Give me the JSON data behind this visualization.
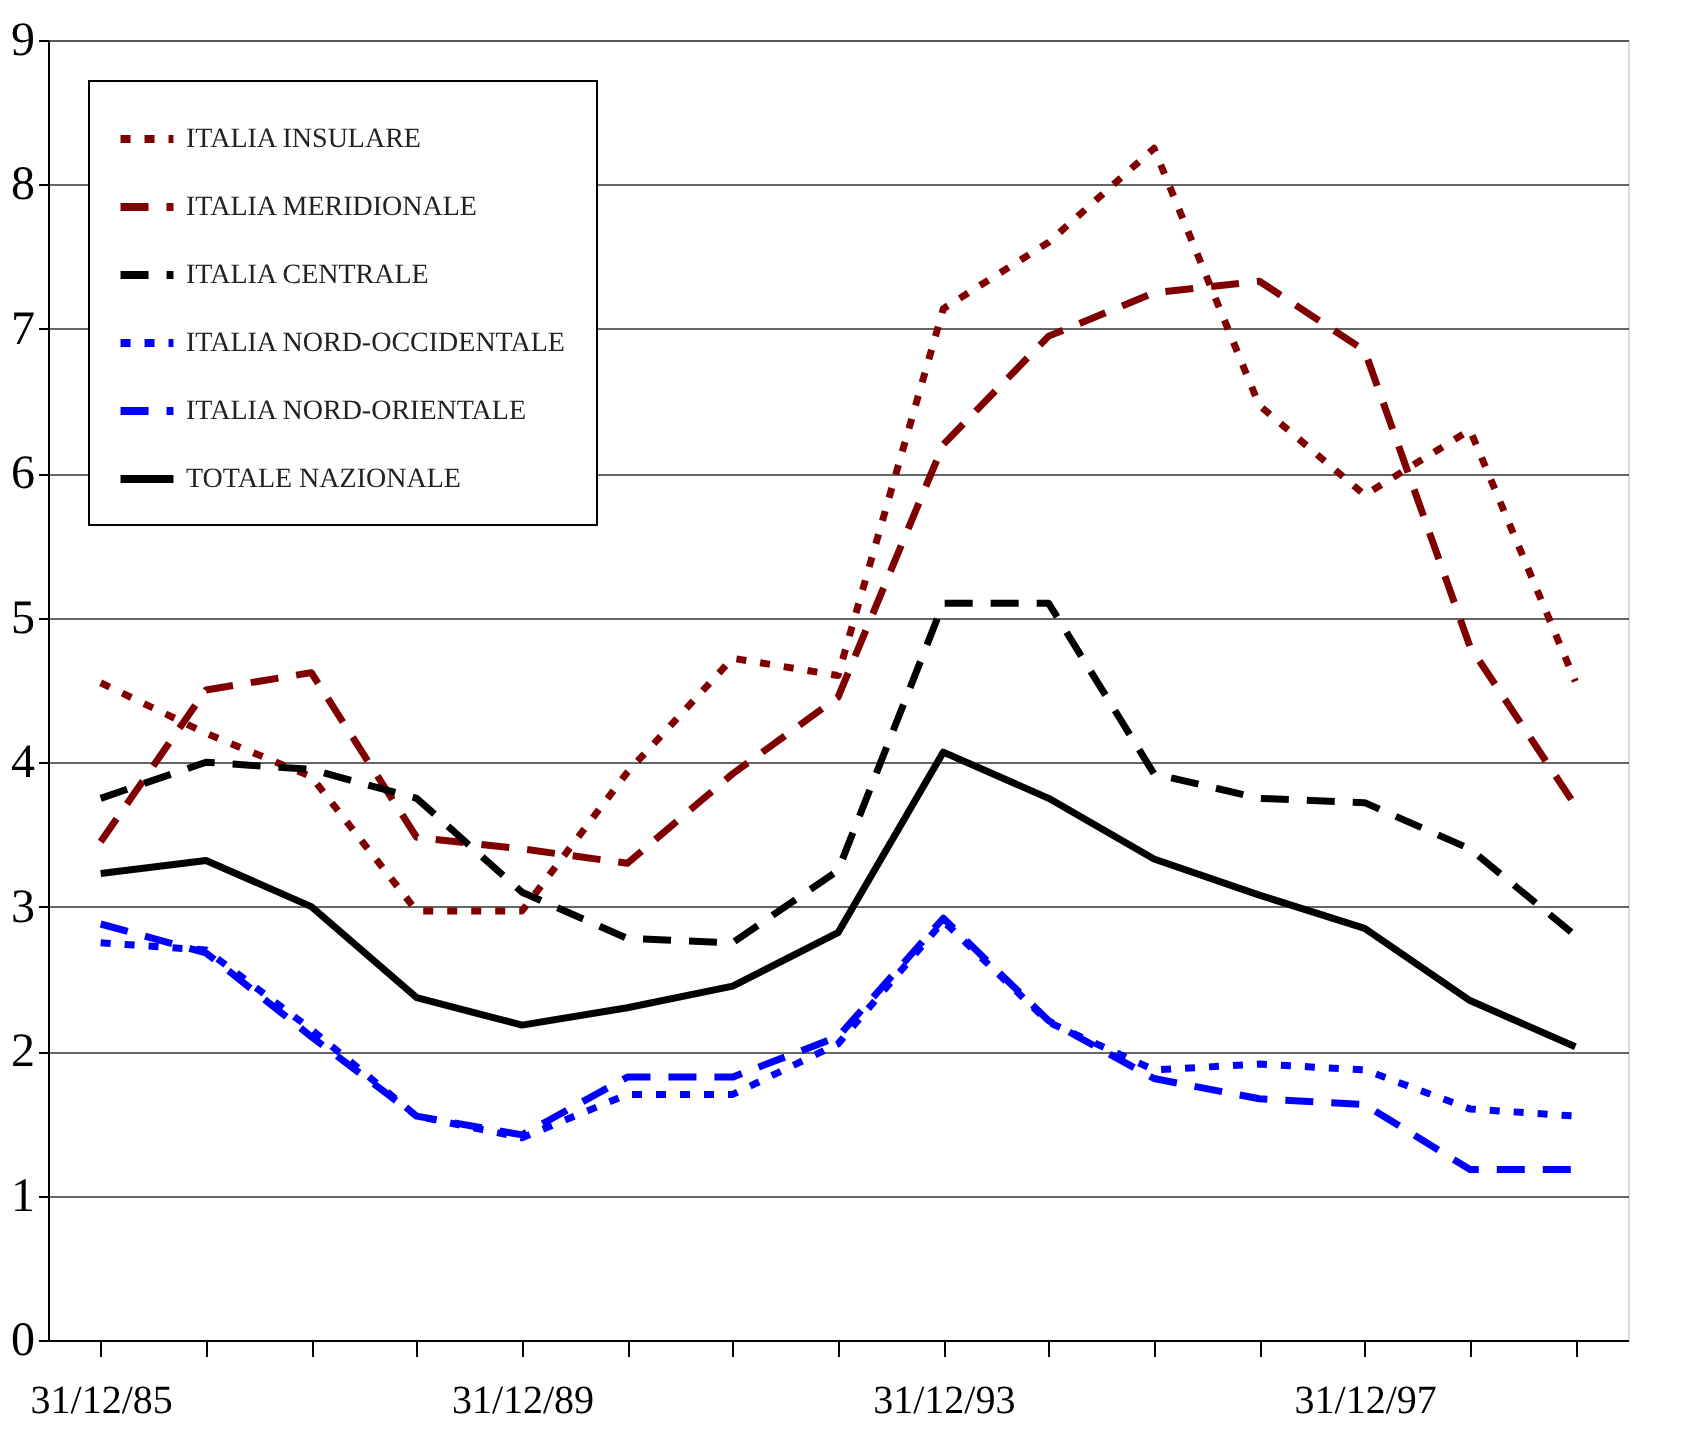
{
  "chart_data": {
    "type": "line",
    "categories": [
      "31/12/85",
      null,
      null,
      null,
      "31/12/89",
      null,
      null,
      null,
      "31/12/93",
      null,
      null,
      null,
      "31/12/97",
      null,
      null
    ],
    "series": [
      {
        "name": "ITALIA INSULARE",
        "color": "#800000",
        "line_style": "dotted",
        "values": [
          4.55,
          4.2,
          3.9,
          2.97,
          2.97,
          3.93,
          4.72,
          4.6,
          7.14,
          7.6,
          8.25,
          6.47,
          5.85,
          6.3,
          4.56
        ]
      },
      {
        "name": "ITALIA MERIDIONALE",
        "color": "#800000",
        "line_style": "dashed",
        "values": [
          3.45,
          4.5,
          4.62,
          3.48,
          3.4,
          3.3,
          3.92,
          4.45,
          6.2,
          6.95,
          7.25,
          7.33,
          6.85,
          4.8,
          3.7
        ]
      },
      {
        "name": "ITALIA CENTRALE",
        "color": "#000000",
        "line_style": "dashed",
        "values": [
          3.75,
          4.0,
          3.95,
          3.75,
          3.1,
          2.78,
          2.75,
          3.25,
          5.1,
          5.1,
          3.92,
          3.75,
          3.72,
          3.4,
          2.8
        ]
      },
      {
        "name": "ITALIA NORD-OCCIDENTALE",
        "color": "#0000ff",
        "line_style": "dotted",
        "values": [
          2.75,
          2.7,
          2.15,
          1.55,
          1.4,
          1.7,
          1.7,
          2.05,
          2.9,
          2.2,
          1.87,
          1.91,
          1.87,
          1.6,
          1.55
        ]
      },
      {
        "name": "ITALIA NORD-ORIENTALE",
        "color": "#0000ff",
        "line_style": "dashed",
        "values": [
          2.88,
          2.68,
          2.1,
          1.55,
          1.42,
          1.82,
          1.82,
          2.1,
          2.92,
          2.21,
          1.81,
          1.67,
          1.63,
          1.18,
          1.18
        ]
      },
      {
        "name": "TOTALE NAZIONALE",
        "color": "#000000",
        "line_style": "solid",
        "values": [
          3.23,
          3.32,
          3.0,
          2.37,
          2.18,
          2.3,
          2.45,
          2.82,
          4.07,
          3.75,
          3.33,
          3.08,
          2.85,
          2.35,
          2.03
        ]
      }
    ],
    "ylim": [
      0,
      9
    ],
    "yticks": [
      0,
      1,
      2,
      3,
      4,
      5,
      6,
      7,
      8,
      9
    ],
    "grid": "y",
    "legend": "top left"
  }
}
